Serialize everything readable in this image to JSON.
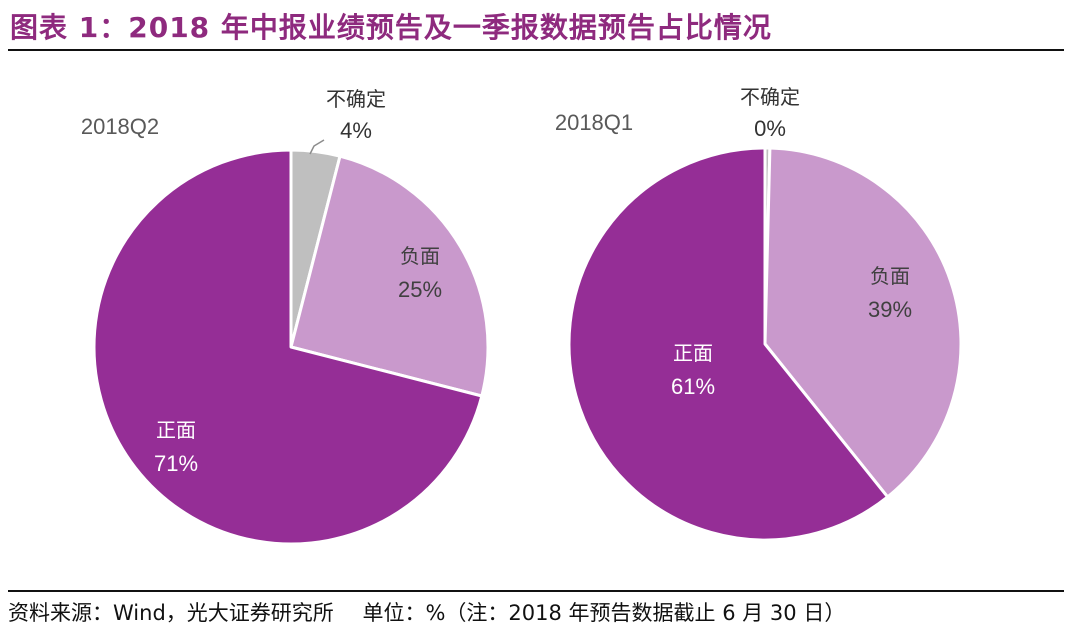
{
  "figure": {
    "title": "图表 1：2018 年中报业绩预告及一季报数据预告占比情况"
  },
  "footer": {
    "source": "资料来源：Wind，光大证券研究所",
    "unit": "单位：%（注：2018 年预告数据截止 6 月 30 日）"
  },
  "colors": {
    "title": "#8e2a7e",
    "positive": "#952e96",
    "negative": "#c999cc",
    "uncertain": "#bfbfbf"
  },
  "chart_data": [
    {
      "type": "pie",
      "title": "2018Q2",
      "slices": [
        {
          "label": "不确定",
          "value": 4,
          "display": "4%",
          "color": "#bfbfbf"
        },
        {
          "label": "负面",
          "value": 25,
          "display": "25%",
          "color": "#c999cc"
        },
        {
          "label": "正面",
          "value": 71,
          "display": "71%",
          "color": "#952e96"
        }
      ]
    },
    {
      "type": "pie",
      "title": "2018Q1",
      "slices": [
        {
          "label": "不确定",
          "value": 0.4,
          "display": "0%",
          "color": "#bfbfbf"
        },
        {
          "label": "负面",
          "value": 39,
          "display": "39%",
          "color": "#c999cc"
        },
        {
          "label": "正面",
          "value": 61,
          "display": "61%",
          "color": "#952e96"
        }
      ]
    }
  ]
}
